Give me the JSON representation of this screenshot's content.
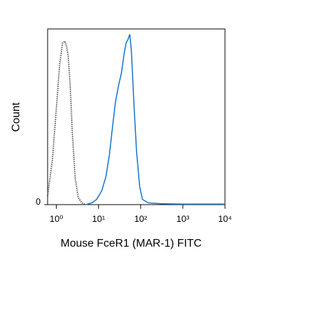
{
  "chart_data": {
    "type": "line",
    "x_label": "Mouse FceR1 (MAR-1) FITC",
    "y_label": "Count",
    "xscale": "log",
    "xlim": [
      0.62,
      10000
    ],
    "xticks": [
      {
        "value": 1,
        "label": "10⁰"
      },
      {
        "value": 10,
        "label": "10¹"
      },
      {
        "value": 100,
        "label": "10²"
      },
      {
        "value": 1000,
        "label": "10³"
      },
      {
        "value": 10000,
        "label": "10⁴"
      }
    ],
    "ylim": [
      0,
      100
    ],
    "yticks": [
      0
    ],
    "series": [
      {
        "color": "#555555",
        "dash": "dotted",
        "x": [
          0.62,
          0.8,
          1.0,
          1.2,
          1.4,
          1.6,
          1.75,
          1.9,
          2.1,
          2.4,
          2.8,
          3.3,
          4.0,
          5
        ],
        "values": [
          5,
          25,
          55,
          80,
          92,
          93,
          90,
          85,
          70,
          40,
          15,
          4,
          1,
          0
        ]
      },
      {
        "color": "#1f78d0",
        "dash": "solid",
        "x": [
          5,
          7,
          9,
          12,
          15,
          18,
          21,
          25,
          30,
          35,
          40,
          45,
          50,
          55,
          60,
          70,
          80,
          95,
          110,
          150,
          300,
          1000,
          3000,
          10000
        ],
        "values": [
          0,
          1,
          3,
          8,
          16,
          28,
          42,
          58,
          68,
          75,
          85,
          92,
          94,
          97,
          88,
          55,
          30,
          10,
          3,
          1,
          0.5,
          0.3,
          0.3,
          0.3
        ]
      }
    ]
  }
}
